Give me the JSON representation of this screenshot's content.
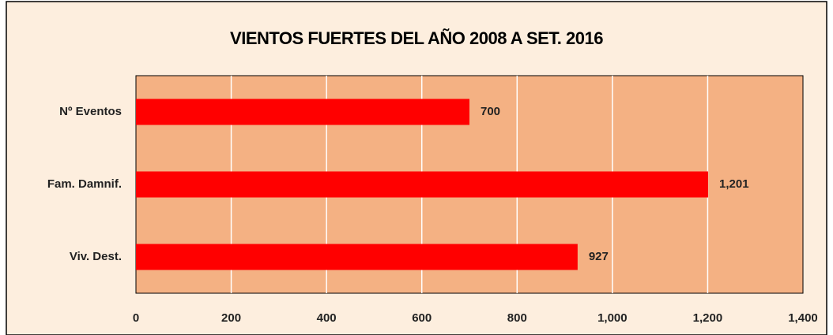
{
  "chart_data": {
    "type": "bar",
    "orientation": "horizontal",
    "title": "VIENTOS FUERTES DEL AÑO 2008 A SET. 2016",
    "categories": [
      "Nº Eventos",
      "Fam. Damnif.",
      "Viv. Dest."
    ],
    "values": [
      700,
      1201,
      927
    ],
    "value_labels": [
      "700",
      "1,201",
      "927"
    ],
    "color": "#ff0000",
    "xlim": [
      0,
      1400
    ],
    "xticks": [
      0,
      200,
      400,
      600,
      800,
      {
        "value": 1000,
        "label": "1,000"
      },
      {
        "value": 1200,
        "label": "1,200"
      },
      {
        "value": 1400,
        "label": "1,400"
      }
    ],
    "grid": true
  }
}
